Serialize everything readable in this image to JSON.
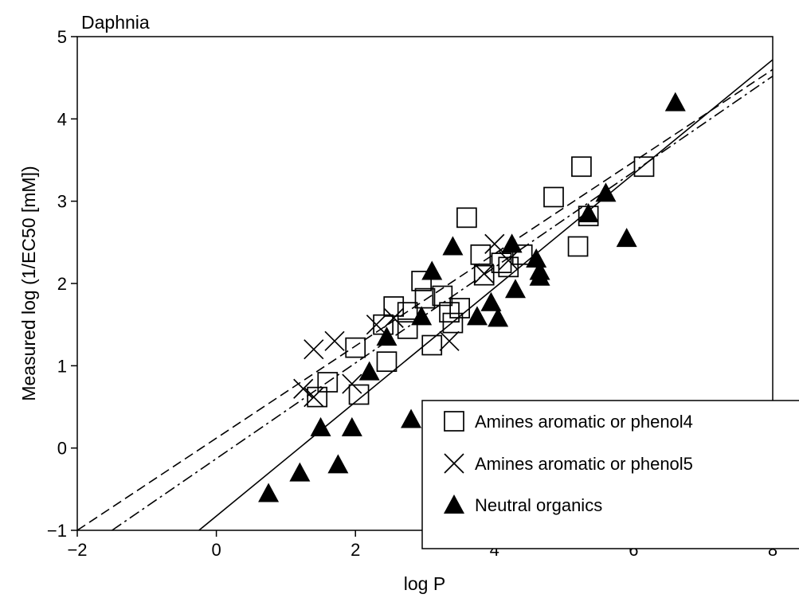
{
  "chart_data": {
    "type": "scatter",
    "title": "Daphnia",
    "xlabel": "log P",
    "ylabel": "Measured log (1/EC50 [mM])",
    "xlim": [
      -2,
      8
    ],
    "ylim": [
      -1,
      5
    ],
    "xticks": [
      -2,
      0,
      2,
      4,
      6,
      8
    ],
    "yticks": [
      -1,
      0,
      1,
      2,
      3,
      4,
      5
    ],
    "grid": false,
    "legend_position": "bottom-right",
    "series": [
      {
        "name": "Amines aromatic or phenol4",
        "marker": "square",
        "points": [
          [
            1.45,
            0.62
          ],
          [
            1.6,
            0.8
          ],
          [
            2.0,
            1.22
          ],
          [
            2.05,
            0.65
          ],
          [
            2.45,
            1.05
          ],
          [
            2.4,
            1.5
          ],
          [
            2.55,
            1.72
          ],
          [
            2.75,
            1.45
          ],
          [
            2.75,
            1.65
          ],
          [
            2.95,
            2.03
          ],
          [
            3.0,
            1.82
          ],
          [
            3.1,
            1.25
          ],
          [
            3.25,
            1.85
          ],
          [
            3.35,
            1.65
          ],
          [
            3.4,
            1.52
          ],
          [
            3.5,
            1.7
          ],
          [
            3.6,
            2.8
          ],
          [
            3.8,
            2.35
          ],
          [
            3.85,
            2.1
          ],
          [
            4.1,
            2.25
          ],
          [
            4.2,
            2.2
          ],
          [
            4.4,
            2.35
          ],
          [
            4.85,
            3.05
          ],
          [
            5.2,
            2.45
          ],
          [
            5.25,
            3.42
          ],
          [
            5.35,
            2.82
          ],
          [
            6.15,
            3.42
          ]
        ]
      },
      {
        "name": "Amines aromatic or phenol5",
        "marker": "x",
        "points": [
          [
            1.25,
            0.72
          ],
          [
            1.4,
            0.62
          ],
          [
            1.4,
            1.2
          ],
          [
            1.7,
            1.3
          ],
          [
            1.95,
            0.78
          ],
          [
            2.3,
            1.5
          ],
          [
            2.55,
            1.58
          ],
          [
            3.35,
            1.3
          ],
          [
            3.85,
            2.12
          ],
          [
            4.0,
            2.48
          ],
          [
            4.2,
            2.28
          ]
        ]
      },
      {
        "name": "Neutral organics",
        "marker": "triangle",
        "points": [
          [
            0.75,
            -0.55
          ],
          [
            1.2,
            -0.3
          ],
          [
            1.5,
            0.25
          ],
          [
            1.75,
            -0.2
          ],
          [
            1.95,
            0.25
          ],
          [
            2.2,
            0.93
          ],
          [
            2.45,
            1.35
          ],
          [
            2.8,
            0.35
          ],
          [
            2.95,
            1.6
          ],
          [
            3.1,
            2.15
          ],
          [
            3.4,
            2.45
          ],
          [
            3.75,
            1.6
          ],
          [
            3.95,
            1.77
          ],
          [
            4.05,
            1.58
          ],
          [
            4.25,
            2.48
          ],
          [
            4.3,
            1.93
          ],
          [
            4.6,
            2.3
          ],
          [
            4.65,
            2.15
          ],
          [
            4.65,
            2.08
          ],
          [
            5.35,
            2.85
          ],
          [
            5.6,
            3.1
          ],
          [
            5.9,
            2.55
          ],
          [
            6.6,
            4.2
          ]
        ]
      }
    ],
    "lines": [
      {
        "style": "solid",
        "from": [
          -0.25,
          -1.0
        ],
        "to": [
          8.0,
          4.72
        ]
      },
      {
        "style": "dashed",
        "from": [
          -2.0,
          -1.0
        ],
        "to": [
          8.0,
          4.6
        ]
      },
      {
        "style": "dashdot",
        "from": [
          -1.5,
          -1.0
        ],
        "to": [
          8.0,
          4.52
        ]
      }
    ]
  }
}
